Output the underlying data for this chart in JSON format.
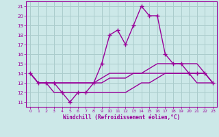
{
  "xlabel": "Windchill (Refroidissement éolien,°C)",
  "background_color": "#cce8e8",
  "grid_color": "#aacccc",
  "line_color": "#990099",
  "xlim": [
    -0.5,
    23.5
  ],
  "ylim": [
    10.5,
    21.5
  ],
  "yticks": [
    11,
    12,
    13,
    14,
    15,
    16,
    17,
    18,
    19,
    20,
    21
  ],
  "xticks": [
    0,
    1,
    2,
    3,
    4,
    5,
    6,
    7,
    8,
    9,
    10,
    11,
    12,
    13,
    14,
    15,
    16,
    17,
    18,
    19,
    20,
    21,
    22,
    23
  ],
  "lines": [
    {
      "x": [
        0,
        1,
        2,
        3,
        4,
        5,
        6,
        7,
        8,
        9,
        10,
        11,
        12,
        13,
        14,
        15,
        16,
        17,
        18,
        19,
        20,
        21,
        22,
        23
      ],
      "y": [
        14,
        13,
        13,
        13,
        12,
        11,
        12,
        12,
        13,
        15,
        18,
        18.5,
        17,
        19,
        21,
        20,
        20,
        16,
        15,
        15,
        14,
        14,
        14,
        13
      ],
      "marker": "+",
      "lw": 1.0
    },
    {
      "x": [
        0,
        1,
        2,
        3,
        4,
        5,
        6,
        7,
        8,
        9,
        10,
        11,
        12,
        13,
        14,
        15,
        16,
        17,
        18,
        19,
        20,
        21,
        22,
        23
      ],
      "y": [
        14,
        13,
        13,
        13,
        13,
        13,
        13,
        13,
        13,
        13.5,
        14,
        14,
        14,
        14,
        14,
        14.5,
        15,
        15,
        15,
        15,
        15,
        15,
        14,
        13
      ],
      "marker": null,
      "lw": 1.0
    },
    {
      "x": [
        0,
        1,
        2,
        3,
        4,
        5,
        6,
        7,
        8,
        9,
        10,
        11,
        12,
        13,
        14,
        15,
        16,
        17,
        18,
        19,
        20,
        21,
        22,
        23
      ],
      "y": [
        14,
        13,
        13,
        13,
        13,
        13,
        13,
        13,
        13,
        13,
        13.5,
        13.5,
        13.5,
        14,
        14,
        14,
        14,
        14,
        14,
        14,
        14,
        14,
        14,
        13
      ],
      "marker": null,
      "lw": 1.0
    },
    {
      "x": [
        0,
        1,
        2,
        3,
        4,
        5,
        6,
        7,
        8,
        9,
        10,
        11,
        12,
        13,
        14,
        15,
        16,
        17,
        18,
        19,
        20,
        21,
        22,
        23
      ],
      "y": [
        14,
        13,
        13,
        12,
        12,
        12,
        12,
        12,
        12,
        12,
        12,
        12,
        12,
        12.5,
        13,
        13,
        13.5,
        14,
        14,
        14,
        14,
        13,
        13,
        13
      ],
      "marker": null,
      "lw": 1.0
    }
  ]
}
